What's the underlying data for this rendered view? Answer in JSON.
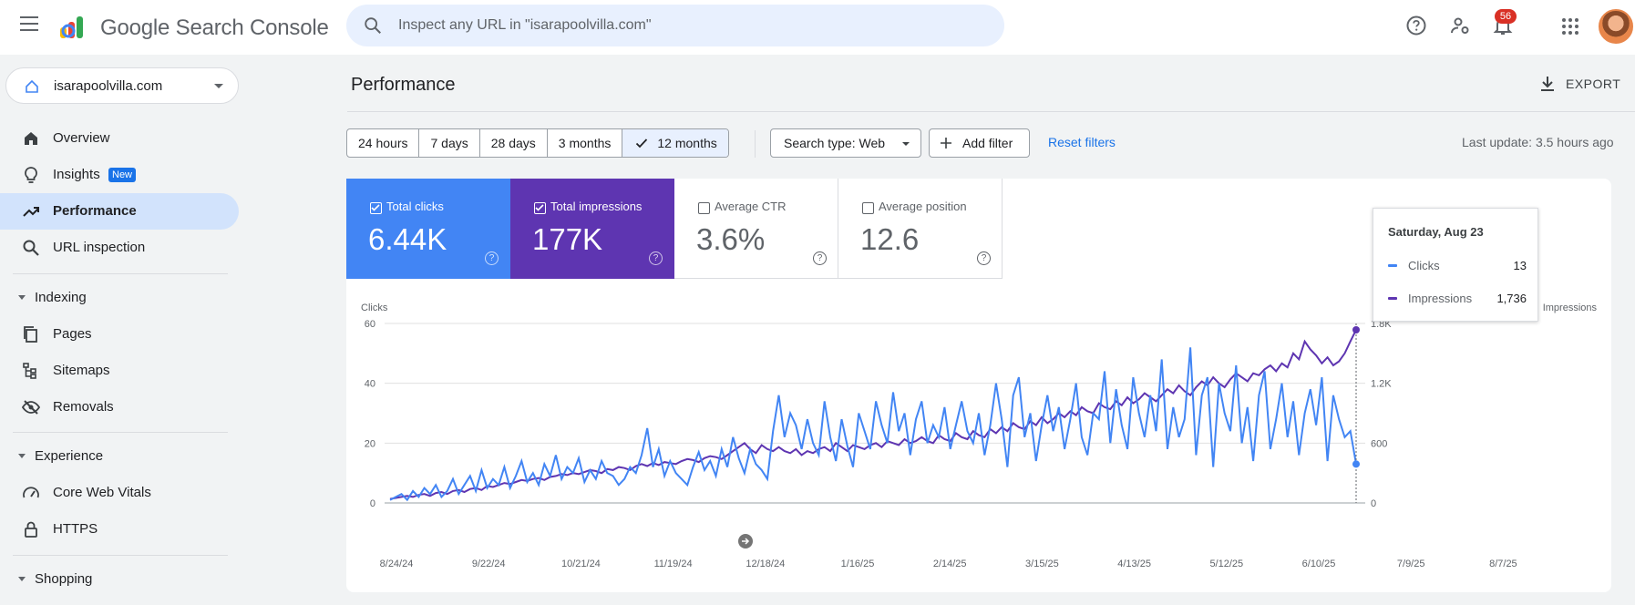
{
  "app": {
    "title": "Google Search Console",
    "search_placeholder": "Inspect any URL in \"isarapoolvilla.com\"",
    "notification_count": "56"
  },
  "property": {
    "name": "isarapoolvilla.com"
  },
  "sidebar": {
    "items": [
      {
        "label": "Overview",
        "icon": "home-icon"
      },
      {
        "label": "Insights",
        "icon": "lightbulb-icon",
        "badge": "New"
      },
      {
        "label": "Performance",
        "icon": "trending-up-icon",
        "active": true
      },
      {
        "label": "URL inspection",
        "icon": "search-icon"
      }
    ],
    "sections": [
      {
        "label": "Indexing",
        "items": [
          {
            "label": "Pages",
            "icon": "pages-icon"
          },
          {
            "label": "Sitemaps",
            "icon": "sitemap-icon"
          },
          {
            "label": "Removals",
            "icon": "eye-off-icon"
          }
        ]
      },
      {
        "label": "Experience",
        "items": [
          {
            "label": "Core Web Vitals",
            "icon": "speed-icon"
          },
          {
            "label": "HTTPS",
            "icon": "lock-icon"
          }
        ]
      },
      {
        "label": "Shopping",
        "items": []
      }
    ]
  },
  "page": {
    "title": "Performance",
    "export_label": "EXPORT",
    "date_ranges": [
      "24 hours",
      "7 days",
      "28 days",
      "3 months",
      "12 months"
    ],
    "selected_range": "12 months",
    "search_type": "Search type: Web",
    "add_filter": "Add filter",
    "reset_filters": "Reset filters",
    "last_update": "Last update: 3.5 hours ago"
  },
  "metrics": {
    "clicks": {
      "label": "Total clicks",
      "value": "6.44K",
      "checked": true,
      "color": "#4285f4"
    },
    "impressions": {
      "label": "Total impressions",
      "value": "177K",
      "checked": true,
      "color": "#5e35b1"
    },
    "ctr": {
      "label": "Average CTR",
      "value": "3.6%",
      "checked": false
    },
    "position": {
      "label": "Average position",
      "value": "12.6",
      "checked": false
    }
  },
  "tooltip": {
    "date": "Saturday, Aug 23",
    "clicks_label": "Clicks",
    "clicks_value": "13",
    "impressions_label": "Impressions",
    "impressions_value": "1,736"
  },
  "chart_data": {
    "type": "line",
    "ylabel_left": "Clicks",
    "ylabel_right": "Impressions",
    "y_left_ticks": [
      "0",
      "20",
      "40",
      "60"
    ],
    "y_right_ticks": [
      "0",
      "600",
      "1.2K",
      "1.8K"
    ],
    "ylim_left": [
      0,
      60
    ],
    "ylim_right": [
      0,
      1800
    ],
    "x_tick_labels": [
      "8/24/24",
      "9/22/24",
      "10/21/24",
      "11/19/24",
      "12/18/24",
      "1/16/25",
      "2/14/25",
      "3/15/25",
      "4/13/25",
      "5/12/25",
      "6/10/25",
      "7/9/25",
      "8/7/25"
    ],
    "series": [
      {
        "name": "Clicks",
        "color": "#4285f4",
        "values": [
          1,
          2,
          3,
          1,
          4,
          2,
          5,
          3,
          6,
          2,
          4,
          8,
          3,
          6,
          9,
          4,
          11,
          5,
          8,
          6,
          12,
          5,
          9,
          14,
          7,
          10,
          6,
          13,
          9,
          16,
          8,
          12,
          10,
          15,
          7,
          11,
          8,
          14,
          10,
          9,
          6,
          8,
          12,
          10,
          16,
          25,
          12,
          18,
          9,
          14,
          10,
          8,
          6,
          12,
          17,
          11,
          14,
          9,
          18,
          12,
          22,
          15,
          10,
          18,
          13,
          11,
          8,
          24,
          36,
          22,
          30,
          26,
          18,
          28,
          20,
          16,
          34,
          22,
          14,
          28,
          19,
          12,
          30,
          24,
          18,
          34,
          26,
          20,
          37,
          24,
          30,
          16,
          28,
          34,
          20,
          26,
          22,
          32,
          18,
          26,
          34,
          24,
          20,
          30,
          16,
          26,
          40,
          28,
          12,
          36,
          42,
          22,
          30,
          14,
          26,
          36,
          24,
          32,
          18,
          28,
          40,
          22,
          16,
          30,
          28,
          44,
          20,
          38,
          26,
          18,
          42,
          30,
          22,
          36,
          24,
          48,
          18,
          32,
          22,
          28,
          52,
          16,
          36,
          42,
          12,
          40,
          30,
          24,
          46,
          20,
          32,
          14,
          36,
          44,
          18,
          28,
          40,
          22,
          34,
          16,
          30,
          38,
          26,
          42,
          14,
          36,
          28,
          22,
          24,
          13
        ]
      },
      {
        "name": "Impressions",
        "color": "#5e35b1",
        "values": [
          40,
          50,
          60,
          70,
          60,
          80,
          90,
          70,
          100,
          110,
          90,
          120,
          130,
          110,
          140,
          150,
          130,
          170,
          160,
          180,
          200,
          190,
          210,
          230,
          220,
          240,
          250,
          230,
          260,
          270,
          290,
          280,
          300,
          290,
          310,
          330,
          320,
          300,
          340,
          330,
          360,
          350,
          330,
          370,
          390,
          370,
          400,
          380,
          410,
          400,
          390,
          420,
          440,
          430,
          410,
          450,
          470,
          460,
          440,
          480,
          520,
          560,
          600,
          540,
          500,
          580,
          540,
          520,
          560,
          520,
          500,
          540,
          480,
          520,
          500,
          540,
          560,
          520,
          600,
          560,
          520,
          580,
          560,
          540,
          580,
          600,
          560,
          620,
          600,
          580,
          640,
          600,
          620,
          660,
          620,
          600,
          680,
          640,
          620,
          700,
          660,
          640,
          720,
          680,
          660,
          740,
          700,
          760,
          720,
          800,
          760,
          740,
          820,
          780,
          860,
          800,
          840,
          900,
          860,
          920,
          880,
          960,
          920,
          900,
          1000,
          960,
          940,
          1020,
          980,
          1060,
          1000,
          1040,
          1100,
          1060,
          1020,
          1080,
          1140,
          1100,
          1180,
          1120,
          1080,
          1160,
          1220,
          1180,
          1260,
          1200,
          1160,
          1240,
          1300,
          1260,
          1220,
          1300,
          1280,
          1340,
          1380,
          1320,
          1400,
          1360,
          1500,
          1440,
          1620,
          1540,
          1480,
          1400,
          1460,
          1380,
          1420,
          1500,
          1620,
          1736
        ]
      }
    ]
  }
}
